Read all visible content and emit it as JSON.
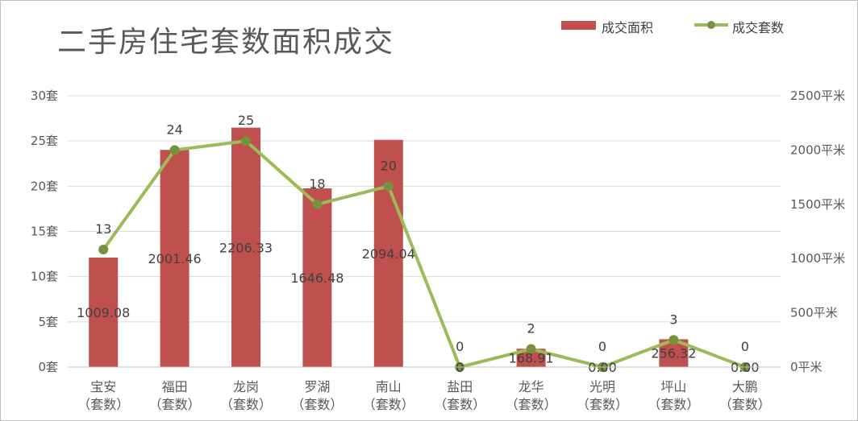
{
  "chart_data": {
    "type": "bar",
    "title": "二手房住宅套数面积成交",
    "categories": [
      [
        "宝安",
        "（套数）"
      ],
      [
        "福田",
        "（套数）"
      ],
      [
        "龙岗",
        "（套数）"
      ],
      [
        "罗湖",
        "（套数）"
      ],
      [
        "南山",
        "（套数）"
      ],
      [
        "盐田",
        "（套数）"
      ],
      [
        "龙华",
        "（套数）"
      ],
      [
        "光明",
        "（套数）"
      ],
      [
        "坪山",
        "（套数）"
      ],
      [
        "大鹏",
        "（套数）"
      ]
    ],
    "series": [
      {
        "name": "成交面积",
        "type": "bar",
        "axis": "right",
        "color": "#c0504d",
        "values": [
          1009.08,
          2001.46,
          2206.33,
          1646.48,
          2094.04,
          0,
          168.91,
          0,
          256.32,
          0
        ],
        "labels": [
          "1009.08",
          "2001.46",
          "2206.33",
          "1646.48",
          "2094.04",
          "0",
          "168.91",
          "0.00",
          "256.32",
          "0.00"
        ]
      },
      {
        "name": "成交套数",
        "type": "line",
        "axis": "left",
        "color": "#9bbb59",
        "values": [
          13,
          24,
          25,
          18,
          20,
          0,
          2,
          0,
          3,
          0
        ],
        "labels": [
          "13",
          "24",
          "25",
          "18",
          "20",
          "0",
          "2",
          "0",
          "3",
          "0"
        ]
      }
    ],
    "y_left": {
      "ylim": [
        0,
        30
      ],
      "ticks": [
        "0套",
        "5套",
        "10套",
        "15套",
        "20套",
        "25套",
        "30套"
      ]
    },
    "y_right": {
      "ylim": [
        0,
        2500
      ],
      "ticks": [
        "0平米",
        "500平米",
        "1000平米",
        "1500平米",
        "2000平米",
        "2500平米"
      ]
    },
    "grid": true,
    "legend": "top-right"
  }
}
